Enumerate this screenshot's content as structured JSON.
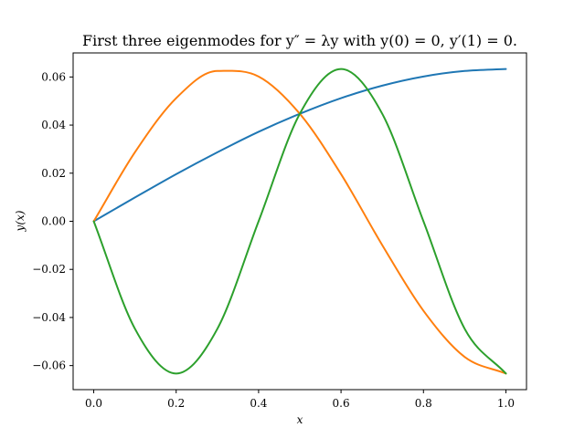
{
  "chart_data": {
    "type": "line",
    "title": "First three eigenmodes for y″ = λy with y(0) = 0, y′(1) = 0.",
    "xlabel": "x",
    "ylabel": "y(x)",
    "xlim": [
      -0.05,
      1.05
    ],
    "ylim": [
      -0.07,
      0.07
    ],
    "xticks": [
      0.0,
      0.2,
      0.4,
      0.6,
      0.8,
      1.0
    ],
    "xtick_labels": [
      "0.0",
      "0.2",
      "0.4",
      "0.6",
      "0.8",
      "1.0"
    ],
    "yticks": [
      -0.06,
      -0.04,
      -0.02,
      0.0,
      0.02,
      0.04,
      0.06
    ],
    "ytick_labels": [
      "−0.06",
      "−0.04",
      "−0.02",
      "0.00",
      "0.02",
      "0.04",
      "0.06"
    ],
    "grid": false,
    "series": [
      {
        "color": "#1f77b4",
        "x": [
          0.0,
          0.1,
          0.2,
          0.3,
          0.4,
          0.5,
          0.6,
          0.7,
          0.8,
          0.9,
          1.0
        ],
        "y": [
          0.0,
          0.0099,
          0.0196,
          0.0287,
          0.0372,
          0.0447,
          0.0512,
          0.0564,
          0.0602,
          0.0625,
          0.0633
        ]
      },
      {
        "color": "#ff7f0e",
        "x": [
          0.0,
          0.1,
          0.2,
          0.3,
          0.4,
          0.5,
          0.6,
          0.7,
          0.8,
          0.9,
          1.0
        ],
        "y": [
          0.0,
          0.0287,
          0.0512,
          0.0625,
          0.0602,
          0.0447,
          0.0196,
          -0.0099,
          -0.0372,
          -0.0564,
          -0.0633
        ]
      },
      {
        "color": "#2ca02c",
        "x": [
          0.0,
          0.1,
          0.2,
          0.3,
          0.4,
          0.5,
          0.6,
          0.7,
          0.8,
          0.9,
          1.0
        ],
        "y": [
          0.0,
          -0.0447,
          -0.0633,
          -0.0447,
          0.0,
          0.0447,
          0.0633,
          0.0447,
          0.0,
          -0.0447,
          -0.0633
        ]
      }
    ]
  }
}
